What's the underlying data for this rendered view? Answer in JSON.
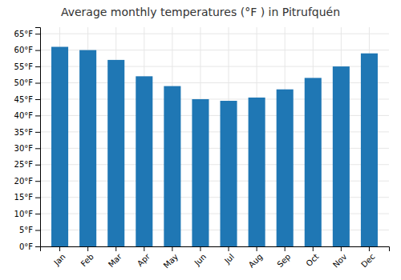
{
  "chart_data": {
    "type": "bar",
    "title": "Average monthly temperatures (°F ) in Pitrufquén",
    "categories": [
      "Jan",
      "Feb",
      "Mar",
      "Apr",
      "May",
      "Jun",
      "Jul",
      "Aug",
      "Sep",
      "Oct",
      "Nov",
      "Dec"
    ],
    "values": [
      61,
      60,
      57,
      52,
      49,
      45,
      44.5,
      45.5,
      48,
      51.5,
      55,
      59
    ],
    "ylim": [
      0,
      67
    ],
    "yticks": [
      {
        "value": 0,
        "label": "0°F"
      },
      {
        "value": 5,
        "label": "5°F"
      },
      {
        "value": 10,
        "label": "10°F"
      },
      {
        "value": 15,
        "label": "15°F"
      },
      {
        "value": 20,
        "label": "20°F"
      },
      {
        "value": 25,
        "label": "25°F"
      },
      {
        "value": 30,
        "label": "30°F"
      },
      {
        "value": 35,
        "label": "35°F"
      },
      {
        "value": 40,
        "label": "40°F"
      },
      {
        "value": 45,
        "label": "45°F"
      },
      {
        "value": 50,
        "label": "50°F"
      },
      {
        "value": 55,
        "label": "55°F"
      },
      {
        "value": 60,
        "label": "60°F"
      },
      {
        "value": 65,
        "label": "65°F"
      }
    ],
    "grid": true
  }
}
